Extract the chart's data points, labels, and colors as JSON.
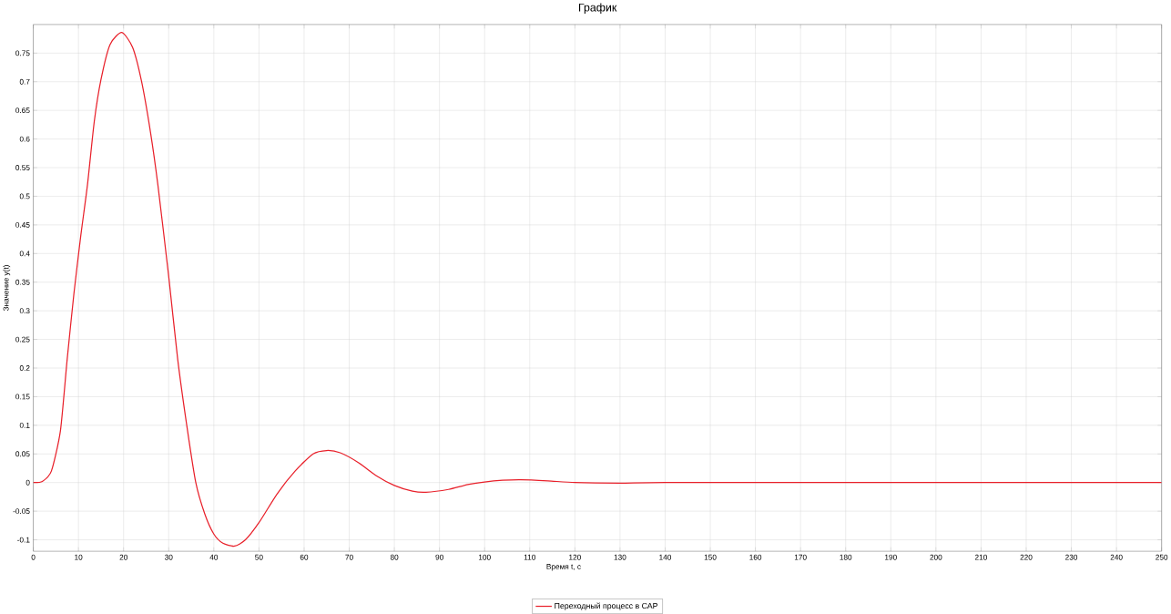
{
  "chart_data": {
    "type": "line",
    "title": "График",
    "xlabel": "Время t, с",
    "ylabel": "Значение y(t)",
    "xlim": [
      0,
      250
    ],
    "ylim": [
      -0.12,
      0.8
    ],
    "xticks": [
      0,
      10,
      20,
      30,
      40,
      50,
      60,
      70,
      80,
      90,
      100,
      110,
      120,
      130,
      140,
      150,
      160,
      170,
      180,
      190,
      200,
      210,
      220,
      230,
      240,
      250
    ],
    "yticks": [
      -0.1,
      -0.05,
      0,
      0.05,
      0.1,
      0.15,
      0.2,
      0.25,
      0.3,
      0.35,
      0.4,
      0.45,
      0.5,
      0.55,
      0.6,
      0.65,
      0.7,
      0.75
    ],
    "grid": true,
    "legend": "bottom",
    "marker": "none",
    "line_style": "solid",
    "series": [
      {
        "name": "Переходный процесс в САР",
        "color": "#e8202a",
        "x": [
          0,
          2,
          4,
          6,
          7.5,
          9,
          10.5,
          12,
          13.5,
          15,
          17,
          19.6,
          22,
          24,
          26,
          27.6,
          30,
          32,
          34,
          36,
          38,
          40,
          42,
          44.6,
          47,
          50,
          54,
          58,
          62,
          65,
          68,
          72,
          76,
          80,
          84,
          87,
          92,
          96,
          100,
          104,
          108,
          114,
          120,
          130,
          140,
          180,
          250
        ],
        "values": [
          0,
          0.002,
          0.02,
          0.09,
          0.215,
          0.33,
          0.43,
          0.52,
          0.63,
          0.704,
          0.765,
          0.786,
          0.76,
          0.7,
          0.61,
          0.52,
          0.36,
          0.215,
          0.1,
          0,
          -0.055,
          -0.09,
          -0.106,
          -0.111,
          -0.1,
          -0.07,
          -0.02,
          0.02,
          0.05,
          0.056,
          0.052,
          0.035,
          0.012,
          -0.005,
          -0.015,
          -0.017,
          -0.012,
          -0.004,
          0.001,
          0.004,
          0.005,
          0.003,
          0,
          -0.001,
          0,
          0,
          0
        ]
      }
    ]
  }
}
